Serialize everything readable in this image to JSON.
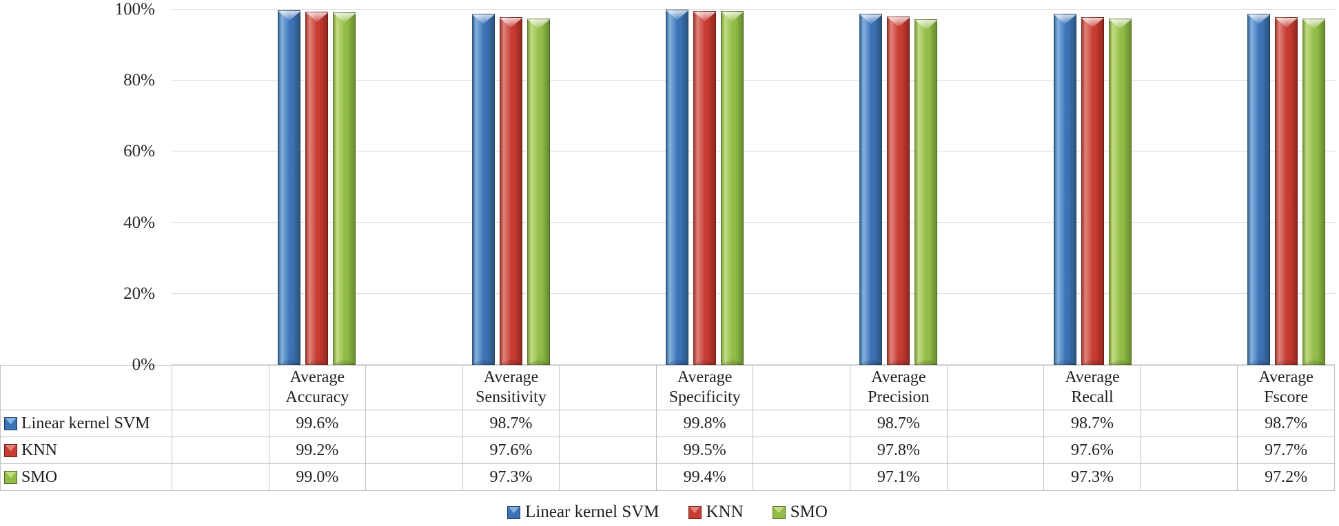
{
  "chart_data": {
    "type": "bar",
    "title": "",
    "categories": [
      "Average Accuracy",
      "Average Sensitivity",
      "Average Specificity",
      "Average Precision",
      "Average Recall",
      "Average Fscore"
    ],
    "series": [
      {
        "name": "Linear kernel SVM",
        "values": [
          99.6,
          98.7,
          99.8,
          98.7,
          98.7,
          98.7
        ],
        "display": [
          "99.6%",
          "98.7%",
          "99.8%",
          "98.7%",
          "98.7%",
          "98.7%"
        ],
        "colors": {
          "base": "#3C72B6",
          "light": "#85B3E2",
          "dark": "#2C567F",
          "edge": "#1E3C5C"
        }
      },
      {
        "name": "KNN",
        "values": [
          99.2,
          97.6,
          99.5,
          97.8,
          97.6,
          97.7
        ],
        "display": [
          "99.2%",
          "97.6%",
          "99.5%",
          "97.8%",
          "97.6%",
          "97.7%"
        ],
        "colors": {
          "base": "#C63B32",
          "light": "#E0837C",
          "dark": "#94291F",
          "edge": "#6E1B17"
        }
      },
      {
        "name": "SMO",
        "values": [
          99.0,
          97.3,
          99.4,
          97.1,
          97.3,
          97.2
        ],
        "display": [
          "99.0%",
          "97.3%",
          "99.4%",
          "97.1%",
          "97.3%",
          "97.2%"
        ],
        "colors": {
          "base": "#92BC47",
          "light": "#C3DC83",
          "dark": "#688D2F",
          "edge": "#4F6A24"
        }
      }
    ],
    "y_axis": {
      "min": 0,
      "max": 100,
      "tick_labels": [
        "0%",
        "20%",
        "40%",
        "60%",
        "80%",
        "100%"
      ],
      "grid": true
    },
    "legend": {
      "position": "bottom",
      "entries": [
        "Linear kernel SVM",
        "KNN",
        "SMO"
      ]
    },
    "data_table_shown": true,
    "gridline_color": "#d8d8d8",
    "table_border_color": "#c2c2c2"
  }
}
